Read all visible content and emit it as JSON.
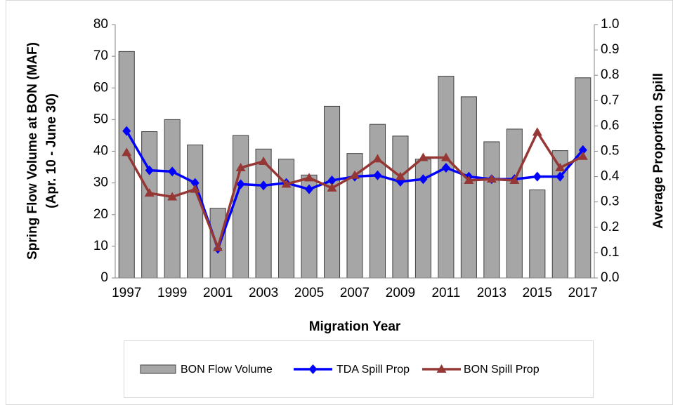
{
  "chart_data": {
    "type": "bar_line",
    "xlabel": "Migration Year",
    "ylabel": [
      "Spring Flow Volume at BON (MAF)",
      "(Apr. 10 - June 30)"
    ],
    "y2label": "Average Proportion Spill",
    "categories": [
      "1997",
      null,
      "1999",
      null,
      "2001",
      null,
      "2003",
      null,
      "2005",
      null,
      "2007",
      null,
      "2009",
      null,
      "2011",
      null,
      "2013",
      null,
      "2015",
      null,
      "2017"
    ],
    "series": [
      {
        "name": "BON Flow Volume",
        "kind": "bar",
        "color": "#a6a6a6",
        "values": [
          71.5,
          46.2,
          50,
          42,
          22,
          45,
          40.7,
          37.5,
          32.5,
          54.2,
          39.3,
          48.5,
          44.8,
          37.5,
          63.7,
          57.2,
          43,
          47,
          27.8,
          40.2,
          63.2
        ]
      },
      {
        "name": "TDA Spill Prop",
        "kind": "line",
        "marker": "diamond",
        "axis": "y2",
        "color": "#0000ff",
        "values": [
          0.58,
          0.425,
          0.42,
          0.375,
          0.115,
          0.37,
          0.365,
          0.375,
          0.35,
          0.385,
          0.4,
          0.405,
          0.38,
          0.39,
          0.435,
          0.4,
          0.39,
          0.39,
          0.4,
          0.4,
          0.505
        ]
      },
      {
        "name": "BON Spill Prop",
        "kind": "line",
        "marker": "triangle",
        "axis": "y2",
        "color": "#953735",
        "values": [
          0.495,
          0.335,
          0.32,
          0.35,
          0.12,
          0.435,
          0.46,
          0.37,
          0.395,
          0.355,
          0.405,
          0.47,
          0.4,
          0.475,
          0.475,
          0.385,
          0.39,
          0.385,
          0.575,
          0.435,
          0.48
        ]
      }
    ],
    "ylim": [
      0,
      80
    ],
    "yticks": [
      0,
      10,
      20,
      30,
      40,
      50,
      60,
      70,
      80
    ],
    "y2lim": [
      0,
      1
    ],
    "y2ticks": [
      {
        "value": 0,
        "label": "0.0"
      },
      0.1,
      0.2,
      0.3,
      0.4,
      0.5,
      0.6,
      0.7,
      0.8,
      0.9,
      {
        "value": 1,
        "label": "1.0"
      }
    ],
    "grid": false,
    "legend": "bottom"
  }
}
